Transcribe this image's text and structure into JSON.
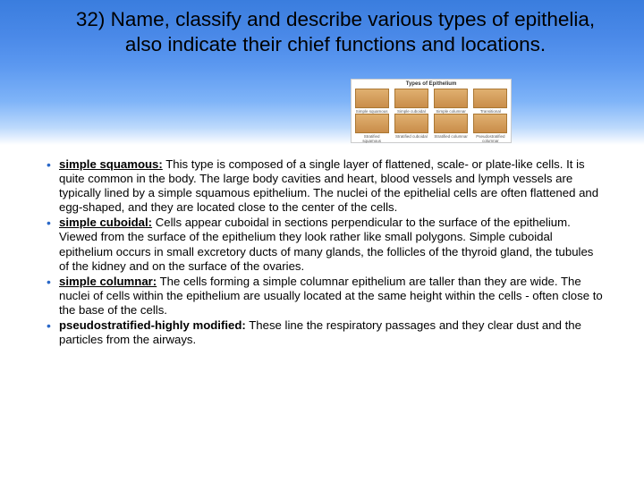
{
  "title": "32) Name, classify and describe various types of epithelia, also indicate their chief functions and locations.",
  "thumb": {
    "caption": "Types of Epithelium",
    "labelsTop": [
      "Simple squamous",
      "Simple cuboidal",
      "Simple columnar",
      "Transitional"
    ],
    "labelsBot": [
      "Stratified squamous",
      "Stratified cuboidal",
      "Stratified columnar",
      "Pseudostratified columnar"
    ]
  },
  "bullets": [
    {
      "term": "simple squamous:",
      "underline": true,
      "text": " This type is composed of a single layer of flattened, scale- or plate-like cells. It is quite common in the body. The large body cavities and heart, blood vessels and lymph vessels are typically lined by a simple squamous epithelium. The nuclei of the epithelial cells are often flattened and egg-shaped, and they are located close to the center of the cells."
    },
    {
      "term": "simple cuboidal:",
      "underline": true,
      "text": " Cells appear cuboidal in sections perpendicular to the surface of the epithelium. Viewed from the surface of the epithelium they look rather like small polygons. Simple cuboidal epithelium occurs in small excretory ducts of many glands, the follicles of the thyroid gland, the tubules of the kidney and on the surface of the ovaries."
    },
    {
      "term": "simple columnar:",
      "underline": true,
      "text": " The cells forming a simple columnar epithelium are taller than they are wide. The nuclei of cells within the epithelium are usually located at the same height within the cells - often close to the base of the cells."
    },
    {
      "term": "pseudostratified-highly modified:",
      "underline": false,
      "text": " These line the respiratory passages and they clear dust and the particles from the airways."
    }
  ],
  "colors": {
    "bulletColor": "#2a68c8",
    "gradTop": "#3a7dde",
    "gradBottom": "#ffffff",
    "textColor": "#000000"
  }
}
